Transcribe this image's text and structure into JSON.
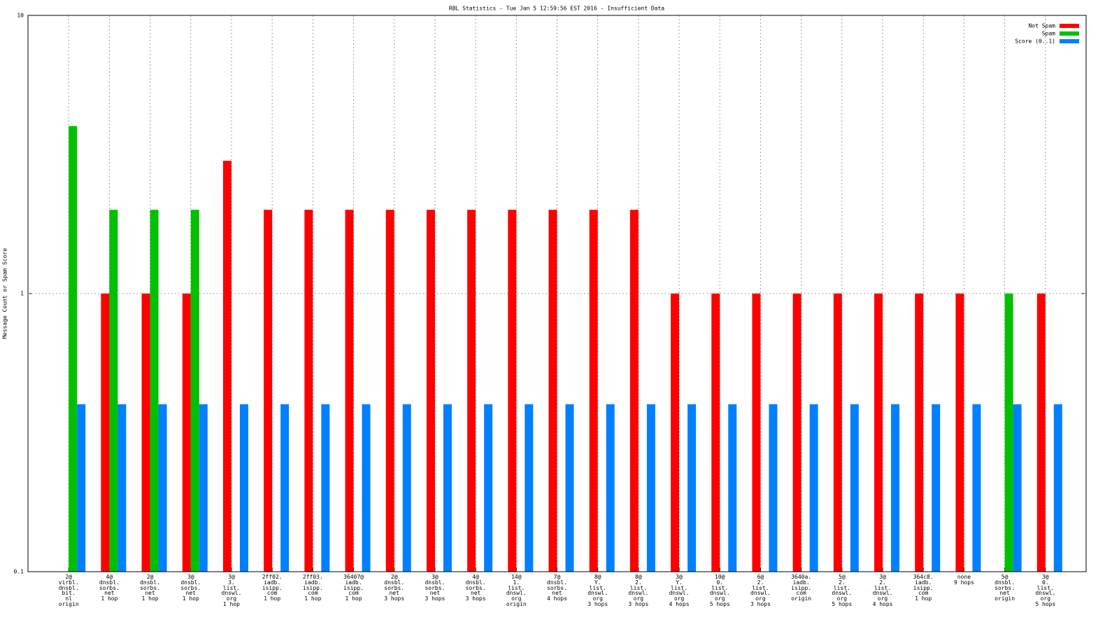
{
  "chart_data": {
    "type": "bar",
    "title": "RBL Statistics - Tue Jan  5 12:59:56 EST 2016 - Insufficient Data",
    "y_label": "Message Count or Spam Score",
    "categories": [
      "2@\nvirbl.\ndnsbl.\nbit.\nnl\norigin",
      "4@\ndnsbl.\nsorbs.\nnet\n1 hop",
      "2@\ndnsbl.\nsorbs.\nnet\n1 hop",
      "3@\ndnsbl.\nsorbs.\nnet\n1 hop",
      "3@\n3.\nlist.\ndnswl.\norg\n1 hop",
      "2ff02.\niadb.\nisipp.\ncom\n1 hop",
      "2ff03.\niadb.\nisipp.\ncom\n1 hop",
      "36407@\niadb.\nisipp.\ncom\n1 hop",
      "2@\ndnsbl.\nsorbs.\nnet\n3 hops",
      "3@\ndnsbl.\nsorbs.\nnet\n3 hops",
      "4@\ndnsbl.\nsorbs.\nnet\n3 hops",
      "14@\n1.\nlist.\ndnswl.\norg\norigin",
      "7@\ndnsbl.\nsorbs.\nnet\n4 hops",
      "8@\nY.\nlist.\ndnswl.\norg\n3 hops",
      "8@\n2.\nlist.\ndnswl.\norg\n3 hops",
      "3@\nY.\nlist.\ndnswl.\norg\n4 hops",
      "10@\n0.\nlist.\ndnswl.\norg\n5 hops",
      "6@\n2.\nlist.\ndnswl.\norg\n3 hops",
      "3640a.\niadb.\nisipp.\ncom\norigin",
      "5@\n2.\nlist.\ndnswl.\norg\n5 hops",
      "3@\n2.\nlist.\ndnswl.\norg\n4 hops",
      "364c8.\niadb.\nisipp.\ncom\n1 hop",
      "none\n9 hops",
      "5@\ndnsbl.\nsorbs.\nnet\norigin",
      "3@\n0.\nlist.\ndnswl.\norg\n5 hops"
    ],
    "series": [
      {
        "name": "Not Spam",
        "color": "#ff0000",
        "values": [
          null,
          1,
          1,
          1,
          3,
          2,
          2,
          2,
          2,
          2,
          2,
          2,
          2,
          2,
          2,
          1,
          1,
          1,
          1,
          1,
          1,
          1,
          1,
          null,
          1
        ]
      },
      {
        "name": "Spam",
        "color": "#00c000",
        "values": [
          4,
          2,
          2,
          2,
          null,
          null,
          null,
          null,
          null,
          null,
          null,
          null,
          null,
          null,
          null,
          null,
          null,
          null,
          null,
          null,
          null,
          null,
          null,
          1,
          null
        ]
      },
      {
        "name": "Score (0..1)",
        "color": "#0080ff",
        "values": [
          0.4,
          0.4,
          0.4,
          0.4,
          0.4,
          0.4,
          0.4,
          0.4,
          0.4,
          0.4,
          0.4,
          0.4,
          0.4,
          0.4,
          0.4,
          0.4,
          0.4,
          0.4,
          0.4,
          0.4,
          0.4,
          0.4,
          0.4,
          0.4,
          0.4
        ]
      }
    ],
    "ylim": [
      0.1,
      10
    ],
    "yticks": [
      0.1,
      1,
      10
    ],
    "log_y": true,
    "grid": true,
    "legend": "top-right"
  }
}
